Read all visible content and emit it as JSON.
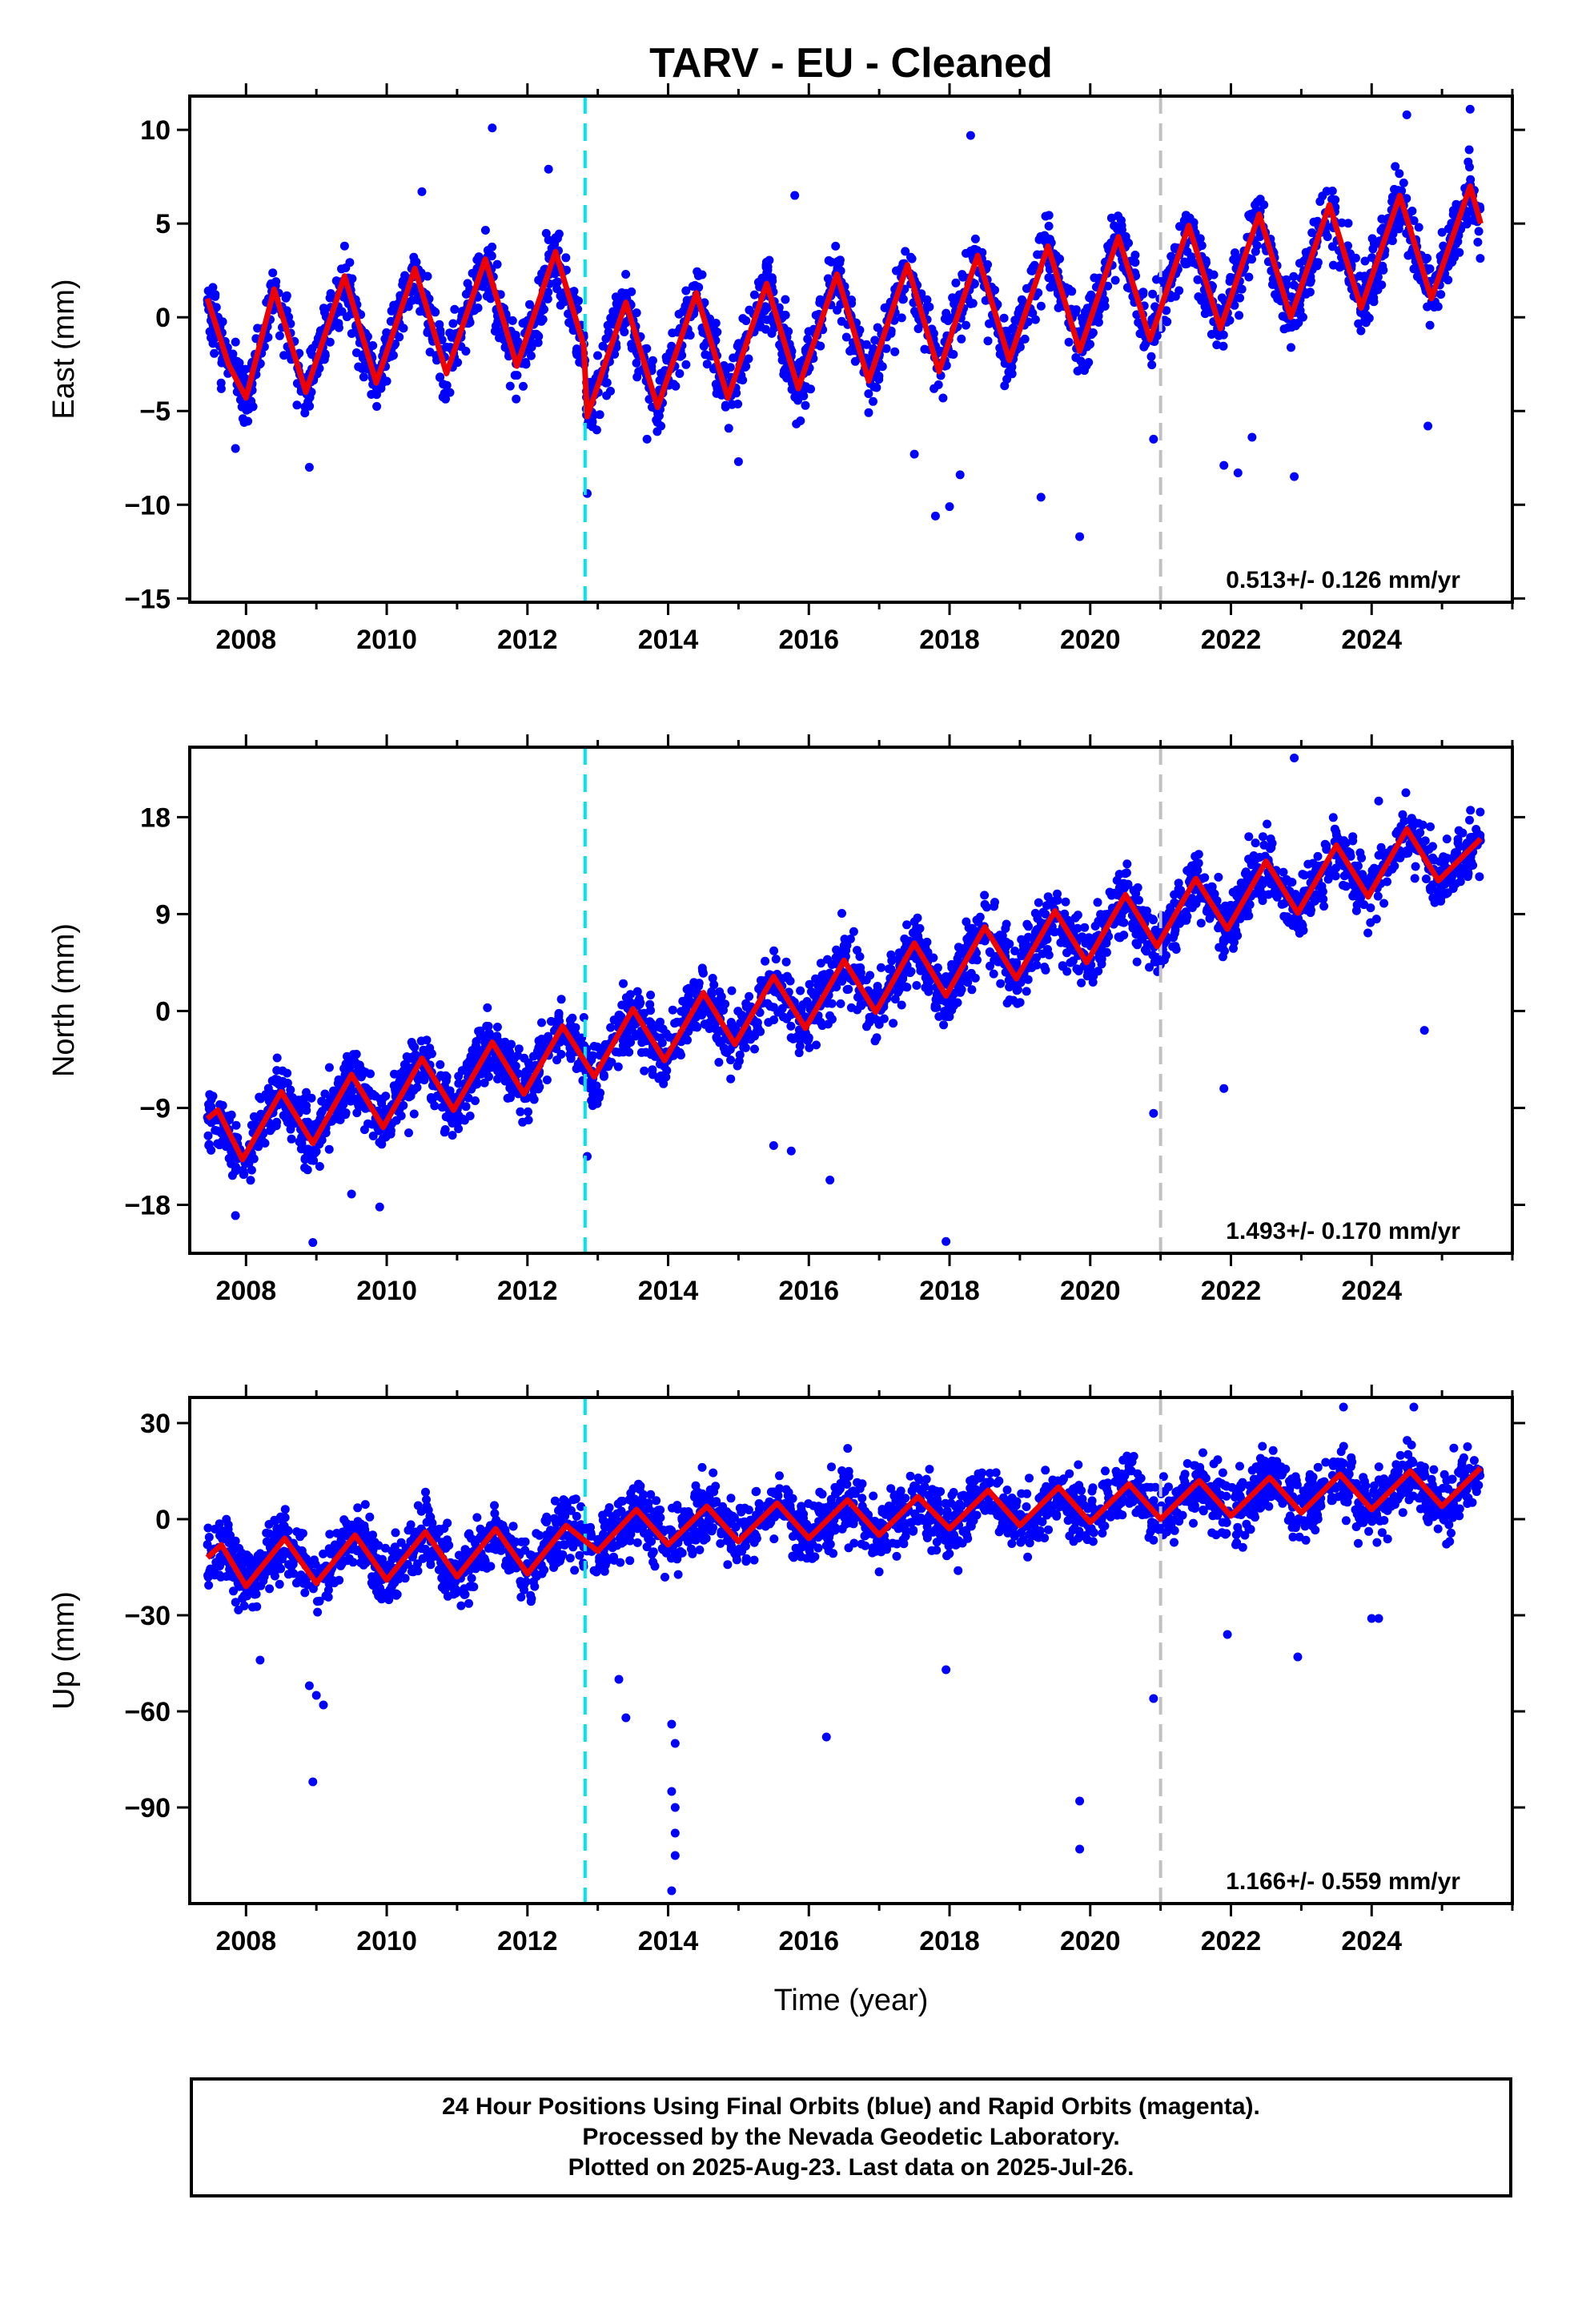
{
  "chart_data": {
    "type": "scatter",
    "title": "TARV  - EU - Cleaned",
    "xlabel": "Time (year)",
    "xlim": [
      2007.2,
      2026.0
    ],
    "x_ticks": [
      2008,
      2010,
      2012,
      2014,
      2016,
      2018,
      2020,
      2022,
      2024
    ],
    "vertical_markers": [
      {
        "x": 2012.82,
        "color": "#00e5ee",
        "style": "dashed"
      },
      {
        "x": 2021.0,
        "color": "#c0c0c0",
        "style": "dashed"
      }
    ],
    "point_color": "#0000ff",
    "fit_color": "#ee0000",
    "panels": [
      {
        "ylabel": "East (mm)",
        "ylim": [
          -15.2,
          11.8
        ],
        "y_ticks": [
          10,
          5,
          0,
          -5,
          -10,
          -15
        ],
        "rate_label": "0.513+/- 0.126 mm/yr",
        "fit": {
          "x": [
            2007.45,
            2007.75,
            2008.0,
            2008.4,
            2008.85,
            2009.4,
            2009.85,
            2010.4,
            2010.85,
            2011.4,
            2011.85,
            2012.4,
            2012.8,
            2012.85,
            2013.4,
            2013.85,
            2014.4,
            2014.85,
            2015.4,
            2015.85,
            2016.4,
            2016.85,
            2017.4,
            2017.85,
            2018.4,
            2018.85,
            2019.4,
            2019.85,
            2020.4,
            2020.85,
            2021.4,
            2021.85,
            2022.4,
            2022.85,
            2023.4,
            2023.85,
            2024.4,
            2024.85,
            2025.4,
            2025.55
          ],
          "y": [
            1.0,
            -2.5,
            -4.3,
            1.5,
            -4.0,
            2.2,
            -3.5,
            2.6,
            -3.0,
            3.1,
            -2.6,
            3.5,
            -1.5,
            -5.3,
            0.8,
            -4.8,
            1.3,
            -4.3,
            1.8,
            -3.8,
            2.3,
            -3.4,
            2.8,
            -2.9,
            3.3,
            -2.3,
            3.8,
            -1.8,
            4.3,
            -1.2,
            4.9,
            -0.6,
            5.5,
            0.0,
            6.0,
            0.5,
            6.5,
            1.0,
            7.0,
            5.0
          ]
        },
        "outliers": [
          [
            2007.85,
            -7.0
          ],
          [
            2008.9,
            -8.0
          ],
          [
            2010.5,
            6.7
          ],
          [
            2011.5,
            10.1
          ],
          [
            2012.3,
            7.9
          ],
          [
            2012.85,
            -9.4
          ],
          [
            2013.7,
            -6.5
          ],
          [
            2015.0,
            -7.7
          ],
          [
            2015.8,
            6.5
          ],
          [
            2017.5,
            -7.3
          ],
          [
            2017.8,
            -10.6
          ],
          [
            2018.0,
            -10.1
          ],
          [
            2018.15,
            -8.4
          ],
          [
            2018.3,
            9.7
          ],
          [
            2019.3,
            -9.6
          ],
          [
            2019.85,
            -11.7
          ],
          [
            2020.9,
            -6.5
          ],
          [
            2021.9,
            -7.9
          ],
          [
            2022.1,
            -8.3
          ],
          [
            2022.3,
            -6.4
          ],
          [
            2022.9,
            -8.5
          ],
          [
            2024.5,
            10.8
          ],
          [
            2024.8,
            -5.8
          ],
          [
            2025.4,
            11.1
          ]
        ]
      },
      {
        "ylabel": "North (mm)",
        "ylim": [
          -22.5,
          24.5
        ],
        "y_ticks": [
          18,
          9,
          0,
          -9,
          -18
        ],
        "rate_label": "1.493+/- 0.170 mm/yr",
        "fit": {
          "x": [
            2007.45,
            2007.6,
            2007.95,
            2008.5,
            2008.95,
            2009.5,
            2009.95,
            2010.5,
            2010.95,
            2011.5,
            2011.95,
            2012.5,
            2012.95,
            2013.5,
            2013.95,
            2014.5,
            2014.95,
            2015.5,
            2015.95,
            2016.5,
            2016.95,
            2017.5,
            2017.95,
            2018.5,
            2018.95,
            2019.5,
            2019.95,
            2020.5,
            2020.95,
            2021.5,
            2021.95,
            2022.5,
            2022.95,
            2023.5,
            2023.95,
            2024.5,
            2024.95,
            2025.55
          ],
          "y": [
            -10.0,
            -9.2,
            -13.8,
            -7.5,
            -12.3,
            -5.9,
            -10.8,
            -4.4,
            -9.2,
            -2.9,
            -7.7,
            -1.4,
            -6.1,
            0.2,
            -4.6,
            1.7,
            -3.1,
            3.2,
            -1.6,
            4.7,
            -0.1,
            6.3,
            1.4,
            7.8,
            3.0,
            9.3,
            4.5,
            10.8,
            6.0,
            12.3,
            7.6,
            13.9,
            9.1,
            15.4,
            10.6,
            16.9,
            12.1,
            16.0
          ]
        },
        "outliers": [
          [
            2007.85,
            -19.0
          ],
          [
            2008.95,
            -21.5
          ],
          [
            2009.5,
            -17.0
          ],
          [
            2009.9,
            -18.2
          ],
          [
            2012.85,
            -13.5
          ],
          [
            2015.5,
            -12.5
          ],
          [
            2015.75,
            -13.0
          ],
          [
            2016.3,
            -15.7
          ],
          [
            2017.95,
            -21.4
          ],
          [
            2020.9,
            -9.5
          ],
          [
            2021.9,
            -7.2
          ],
          [
            2022.9,
            23.5
          ],
          [
            2024.1,
            19.5
          ],
          [
            2024.75,
            -1.8
          ]
        ]
      },
      {
        "ylabel": "Up (mm)",
        "ylim": [
          -120,
          38
        ],
        "y_ticks": [
          30,
          0,
          -30,
          -60,
          -90
        ],
        "rate_label": "1.166+/- 0.559 mm/yr",
        "fit": {
          "x": [
            2007.45,
            2007.65,
            2008.0,
            2008.55,
            2009.0,
            2009.55,
            2010.0,
            2010.55,
            2011.0,
            2011.55,
            2012.0,
            2012.55,
            2013.0,
            2013.55,
            2014.0,
            2014.55,
            2015.0,
            2015.55,
            2016.0,
            2016.55,
            2017.0,
            2017.55,
            2018.0,
            2018.55,
            2019.0,
            2019.55,
            2020.0,
            2020.55,
            2021.0,
            2021.55,
            2022.0,
            2022.55,
            2023.0,
            2023.55,
            2024.0,
            2024.55,
            2025.0,
            2025.55
          ],
          "y": [
            -12,
            -8,
            -21,
            -6,
            -20,
            -5,
            -19,
            -4,
            -18,
            -3,
            -17,
            -2,
            -10,
            3,
            -8,
            4,
            -7,
            5,
            -6,
            6,
            -5,
            7,
            -3,
            9,
            -2,
            10,
            -1,
            11,
            0,
            12,
            1,
            13,
            2,
            14,
            3,
            15,
            4,
            16
          ]
        },
        "outliers": [
          [
            2008.9,
            -52
          ],
          [
            2009.0,
            -55
          ],
          [
            2009.1,
            -58
          ],
          [
            2008.95,
            -82
          ],
          [
            2008.2,
            -44
          ],
          [
            2013.3,
            -50
          ],
          [
            2013.4,
            -62
          ],
          [
            2014.05,
            -64
          ],
          [
            2014.1,
            -70
          ],
          [
            2014.05,
            -85
          ],
          [
            2014.1,
            -90
          ],
          [
            2014.1,
            -98
          ],
          [
            2014.1,
            -105
          ],
          [
            2014.05,
            -116
          ],
          [
            2016.25,
            -68
          ],
          [
            2017.95,
            -47
          ],
          [
            2019.85,
            -88
          ],
          [
            2019.85,
            -103
          ],
          [
            2020.9,
            -56
          ],
          [
            2021.95,
            -36
          ],
          [
            2022.95,
            -43
          ],
          [
            2024.0,
            -31
          ],
          [
            2024.1,
            -31
          ],
          [
            2023.6,
            35
          ],
          [
            2024.6,
            35
          ]
        ]
      }
    ]
  },
  "caption": {
    "line1": "24 Hour Positions Using Final Orbits (blue) and Rapid Orbits (magenta).",
    "line2": "Processed by the Nevada Geodetic Laboratory.",
    "line3": "Plotted on 2025-Aug-23. Last data on 2025-Jul-26."
  }
}
